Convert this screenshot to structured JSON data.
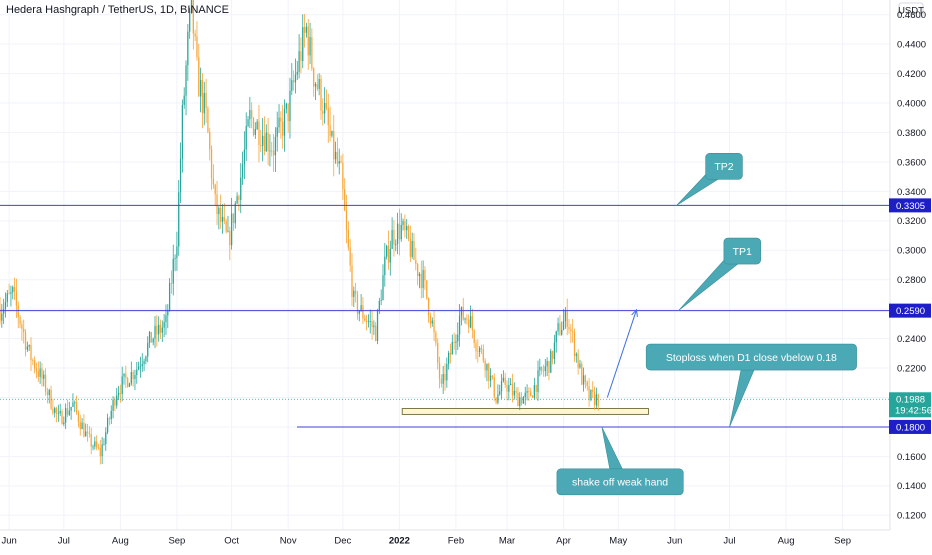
{
  "header": {
    "title": "Hedera Hashgraph / TetherUS, 1D, BINANCE"
  },
  "price_axis": {
    "currency_label": "USDT"
  },
  "colors": {
    "up": "#26a69a",
    "down": "#f7a535",
    "level_line": "#3f3fdc",
    "callout_fill": "#4aa9b5",
    "tag_blue": "#1e1ec8",
    "tag_teal": "#26a69a",
    "zone_fill": "#fff5cf",
    "current_line": "#26a69a"
  },
  "chart_data": {
    "type": "candlestick",
    "series_note": "",
    "ylim": [
      0.11,
      0.47
    ],
    "y_ticks": [
      "0.4600",
      "0.4400",
      "0.4200",
      "0.4000",
      "0.3800",
      "0.3600",
      "0.3400",
      "0.3200",
      "0.3000",
      "0.2800",
      "0.2600",
      "0.2400",
      "0.2200",
      "0.2000",
      "0.1800",
      "0.1600",
      "0.1400",
      "0.1200"
    ],
    "y_tick_values": [
      0.46,
      0.44,
      0.42,
      0.4,
      0.38,
      0.36,
      0.34,
      0.32,
      0.3,
      0.28,
      0.26,
      0.24,
      0.22,
      0.2,
      0.18,
      0.16,
      0.14,
      0.12
    ],
    "x_labels": [
      "Jun",
      "Jul",
      "Aug",
      "Sep",
      "Oct",
      "Nov",
      "Dec",
      "2022",
      "Feb",
      "Mar",
      "Apr",
      "May",
      "Jun",
      "Jul",
      "Aug",
      "Sep"
    ],
    "x_label_dates": [
      "2021-06-01",
      "2021-07-01",
      "2021-08-01",
      "2021-09-01",
      "2021-10-01",
      "2021-11-01",
      "2021-12-01",
      "2022-01-01",
      "2022-02-01",
      "2022-03-01",
      "2022-04-01",
      "2022-05-01",
      "2022-06-01",
      "2022-07-01",
      "2022-08-01",
      "2022-09-01"
    ],
    "x_range": [
      "2021-05-27",
      "2022-09-27"
    ],
    "last_date": "2022-04-20",
    "last_price": "0.1988",
    "countdown": "19:42:56",
    "levels": [
      {
        "name": "TP2",
        "price": 0.3305,
        "label": "0.3305"
      },
      {
        "name": "TP1",
        "price": 0.259,
        "label": "0.2590"
      },
      {
        "name": "Stoploss",
        "price": 0.18,
        "label": "0.1800"
      }
    ],
    "support_zone": {
      "from_date": "2022-01-02",
      "to_date": "2022-05-17",
      "low": 0.1885,
      "high": 0.1925
    },
    "target_arrow": {
      "from_date": "2022-04-25",
      "from_price": 0.2,
      "to_date": "2022-05-11",
      "to_price": 0.2595
    },
    "waypoints": [
      [
        "2021-05-27",
        0.26
      ],
      [
        "2021-06-03",
        0.27
      ],
      [
        "2021-06-12",
        0.23
      ],
      [
        "2021-06-20",
        0.21
      ],
      [
        "2021-06-28",
        0.185
      ],
      [
        "2021-07-06",
        0.195
      ],
      [
        "2021-07-14",
        0.172
      ],
      [
        "2021-07-21",
        0.162
      ],
      [
        "2021-07-30",
        0.205
      ],
      [
        "2021-08-10",
        0.22
      ],
      [
        "2021-08-18",
        0.24
      ],
      [
        "2021-08-26",
        0.25
      ],
      [
        "2021-09-01",
        0.31
      ],
      [
        "2021-09-04",
        0.39
      ],
      [
        "2021-09-07",
        0.44
      ],
      [
        "2021-09-09",
        0.465
      ],
      [
        "2021-09-12",
        0.42
      ],
      [
        "2021-09-17",
        0.39
      ],
      [
        "2021-09-22",
        0.33
      ],
      [
        "2021-09-29",
        0.305
      ],
      [
        "2021-10-06",
        0.35
      ],
      [
        "2021-10-11",
        0.39
      ],
      [
        "2021-10-18",
        0.38
      ],
      [
        "2021-10-24",
        0.37
      ],
      [
        "2021-11-01",
        0.395
      ],
      [
        "2021-11-07",
        0.43
      ],
      [
        "2021-11-11",
        0.45
      ],
      [
        "2021-11-15",
        0.42
      ],
      [
        "2021-11-20",
        0.4
      ],
      [
        "2021-11-25",
        0.37
      ],
      [
        "2021-11-30",
        0.35
      ],
      [
        "2021-12-03",
        0.31
      ],
      [
        "2021-12-07",
        0.265
      ],
      [
        "2021-12-13",
        0.255
      ],
      [
        "2021-12-19",
        0.245
      ],
      [
        "2021-12-24",
        0.29
      ],
      [
        "2021-12-28",
        0.31
      ],
      [
        "2022-01-02",
        0.315
      ],
      [
        "2022-01-06",
        0.305
      ],
      [
        "2022-01-10",
        0.29
      ],
      [
        "2022-01-14",
        0.28
      ],
      [
        "2022-01-19",
        0.25
      ],
      [
        "2022-01-24",
        0.205
      ],
      [
        "2022-01-29",
        0.23
      ],
      [
        "2022-02-03",
        0.255
      ],
      [
        "2022-02-08",
        0.255
      ],
      [
        "2022-02-12",
        0.238
      ],
      [
        "2022-02-17",
        0.225
      ],
      [
        "2022-02-23",
        0.2
      ],
      [
        "2022-02-28",
        0.21
      ],
      [
        "2022-03-06",
        0.2
      ],
      [
        "2022-03-13",
        0.2
      ],
      [
        "2022-03-19",
        0.215
      ],
      [
        "2022-03-25",
        0.225
      ],
      [
        "2022-03-29",
        0.245
      ],
      [
        "2022-04-03",
        0.255
      ],
      [
        "2022-04-06",
        0.24
      ],
      [
        "2022-04-11",
        0.213
      ],
      [
        "2022-04-15",
        0.2
      ],
      [
        "2022-04-20",
        0.199
      ]
    ],
    "annotations": [
      {
        "id": "tp2",
        "text": "TP2",
        "box_date": "2022-06-28",
        "box_price": 0.357,
        "tip_date": "2022-06-02",
        "tip_price": 0.3305
      },
      {
        "id": "tp1",
        "text": "TP1",
        "box_date": "2022-07-08",
        "box_price": 0.2995,
        "tip_date": "2022-06-03",
        "tip_price": 0.259
      },
      {
        "id": "stoploss",
        "text": "Stoploss when D1 close vbelow 0.18",
        "box_date": "2022-07-13",
        "box_price": 0.2275,
        "tip_date": "2022-07-01",
        "tip_price": 0.18
      },
      {
        "id": "shakeoff",
        "text": "shake off weak hand",
        "box_date": "2022-05-02",
        "box_price": 0.1427,
        "tip_date": "2022-04-22",
        "tip_price": 0.18
      }
    ]
  }
}
